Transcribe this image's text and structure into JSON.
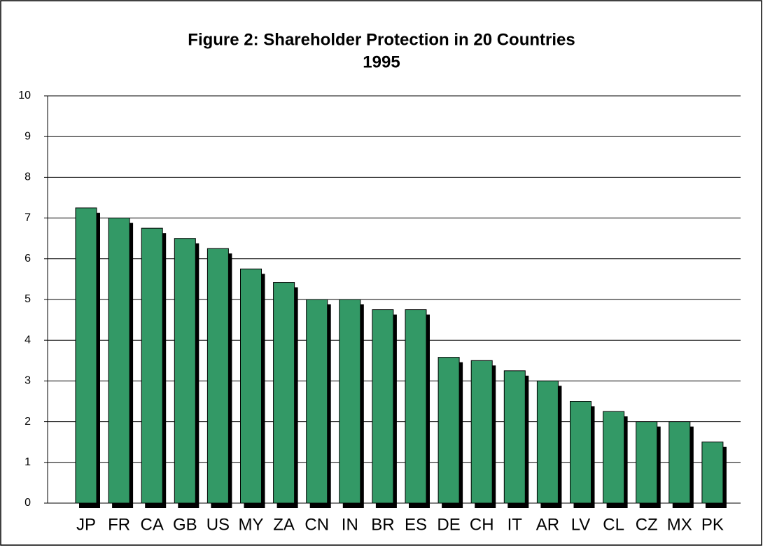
{
  "chart_data": {
    "type": "bar",
    "title": "Figure 2: Shareholder Protection in 20 Countries",
    "subtitle": "1995",
    "categories": [
      "JP",
      "FR",
      "CA",
      "GB",
      "US",
      "MY",
      "ZA",
      "CN",
      "IN",
      "BR",
      "ES",
      "DE",
      "CH",
      "IT",
      "AR",
      "LV",
      "CL",
      "CZ",
      "MX",
      "PK"
    ],
    "values": [
      7.25,
      7.0,
      6.75,
      6.5,
      6.25,
      5.75,
      5.42,
      5.0,
      5.0,
      4.75,
      4.75,
      3.58,
      3.5,
      3.25,
      3.0,
      2.5,
      2.25,
      2.0,
      2.0,
      1.5
    ],
    "color": "#339966",
    "ylim": [
      0,
      10
    ],
    "yticks": [
      0,
      1,
      2,
      3,
      4,
      5,
      6,
      7,
      8,
      9,
      10
    ],
    "grid": true
  }
}
